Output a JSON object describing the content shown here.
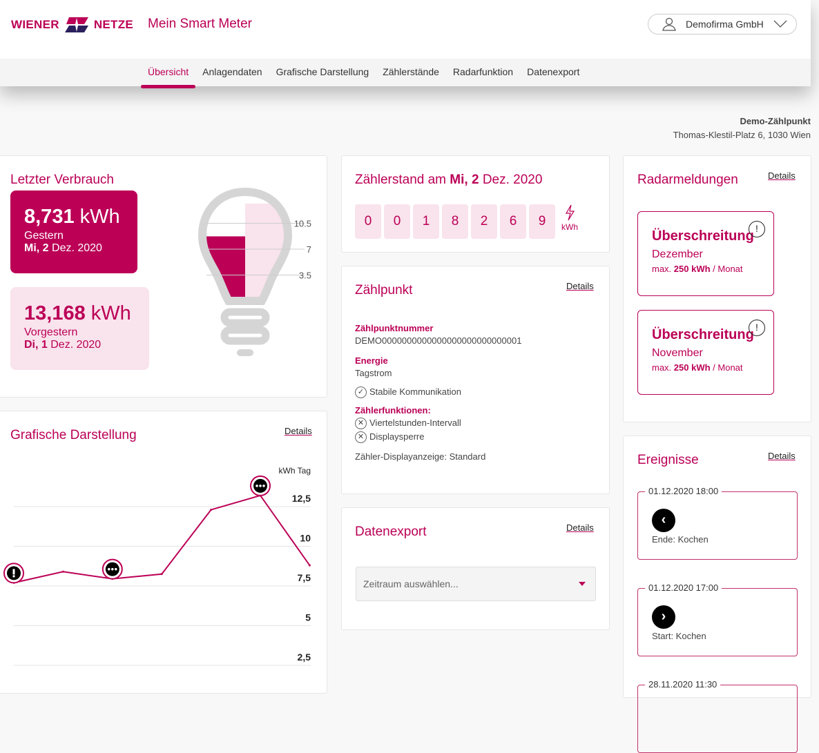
{
  "header": {
    "logo_left": "WIENER",
    "logo_right": "NETZE",
    "app_title": "Mein Smart Meter",
    "user": "Demofirma GmbH"
  },
  "nav": {
    "tabs": [
      "Übersicht",
      "Anlagendaten",
      "Grafische Darstellung",
      "Zählerstände",
      "Radarfunktion",
      "Datenexport"
    ],
    "active": 0
  },
  "meter_point": {
    "name": "Demo-Zählpunkt",
    "address": "Thomas-Klestil-Platz 6, 1030 Wien"
  },
  "consumption": {
    "title": "Letzter Verbrauch",
    "yesterday": {
      "value": "8,731",
      "unit": "kWh",
      "label": "Gestern",
      "day": "Mi, 2",
      "date": "Dez. 2020"
    },
    "day_before": {
      "value": "13,168",
      "unit": "kWh",
      "label": "Vorgestern",
      "day": "Di, 1",
      "date": "Dez. 2020"
    },
    "bulb": {
      "ticks": [
        "10.5",
        "7",
        "3.5"
      ],
      "yesterday_kwh": 8.731,
      "day_before_kwh": 13.168,
      "max": 14
    }
  },
  "reading": {
    "title_prefix": "Zählerstand am",
    "day": "Mi, 2",
    "date": "Dez. 2020",
    "digits": [
      "0",
      "0",
      "1",
      "8",
      "2",
      "6",
      "9"
    ],
    "unit": "kWh"
  },
  "zaehlpunkt": {
    "title": "Zählpunkt",
    "details": "Details",
    "number_label": "Zählpunktnummer",
    "number": "DEMO0000000000000000000000000001",
    "energy_label": "Energie",
    "energy": "Tagstrom",
    "communication": "Stabile Kommunikation",
    "functions_label": "Zählerfunktionen:",
    "functions": [
      "Viertelstunden-Intervall",
      "Displaysperre"
    ],
    "display": "Zähler-Displayanzeige: Standard"
  },
  "export": {
    "title": "Datenexport",
    "details": "Details",
    "placeholder": "Zeitraum auswählen..."
  },
  "chart": {
    "title": "Grafische Darstellung",
    "details": "Details"
  },
  "chart_data": {
    "type": "line",
    "ylabel": "kWh Tag",
    "ylim": [
      0,
      14
    ],
    "yticks": [
      "12,5",
      "10",
      "7,5",
      "5",
      "2,5"
    ],
    "ytick_values": [
      12.5,
      10,
      7.5,
      5,
      2.5
    ],
    "grid": true,
    "values": [
      7.7,
      8.4,
      7.95,
      8.25,
      12.3,
      13.2,
      8.8
    ],
    "markers": [
      {
        "index": 0,
        "icon": "exclamation"
      },
      {
        "index": 2,
        "icon": "ellipsis"
      },
      {
        "index": 5,
        "icon": "ellipsis"
      }
    ],
    "color": "#bb0056"
  },
  "radar": {
    "title": "Radarmeldungen",
    "details": "Details",
    "items": [
      {
        "title": "Überschreitung",
        "month": "Dezember",
        "max_prefix": "max.",
        "max": "250 kWh",
        "max_suffix": "/ Monat"
      },
      {
        "title": "Überschreitung",
        "month": "November",
        "max_prefix": "max.",
        "max": "250 kWh",
        "max_suffix": "/ Monat"
      }
    ]
  },
  "events": {
    "title": "Ereignisse",
    "details": "Details",
    "items": [
      {
        "time": "01.12.2020 18:00",
        "text": "Ende: Kochen",
        "icon": "chevron-left"
      },
      {
        "time": "01.12.2020 17:00",
        "text": "Start: Kochen",
        "icon": "chevron-right"
      },
      {
        "time": "28.11.2020 11:30",
        "text": ""
      }
    ]
  },
  "colors": {
    "brand": "#bb0056",
    "brand_light": "#f9e3ec",
    "navy": "#2a1f5c"
  }
}
